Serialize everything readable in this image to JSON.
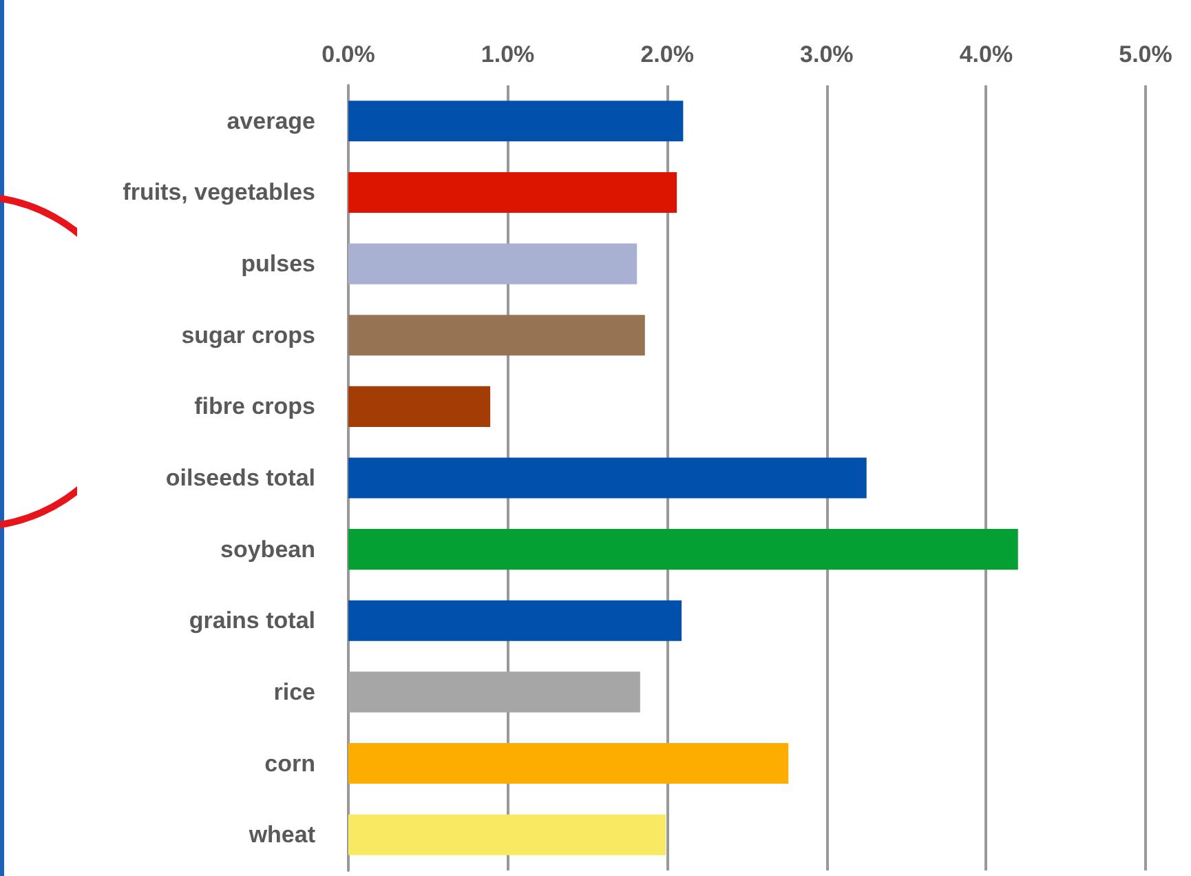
{
  "chart_data": {
    "type": "bar",
    "orientation": "horizontal",
    "categories": [
      "average",
      "fruits, vegetables",
      "pulses",
      "sugar crops",
      "fibre crops",
      "oilseeds total",
      "soybean",
      "grains total",
      "rice",
      "corn",
      "wheat"
    ],
    "values": [
      2.1,
      2.06,
      1.81,
      1.86,
      0.89,
      3.25,
      4.2,
      2.09,
      1.83,
      2.76,
      1.99
    ],
    "colors": [
      "#0050ac",
      "#dc1500",
      "#a9b1d3",
      "#967453",
      "#a43c06",
      "#0050ac",
      "#05a034",
      "#0050ac",
      "#a6a6a6",
      "#fdac00",
      "#f9e862"
    ],
    "xlim": [
      0,
      5
    ],
    "xticks": [
      {
        "value": 0,
        "label": "0.0%"
      },
      {
        "value": 1,
        "label": "1.0%"
      },
      {
        "value": 2,
        "label": "2.0%"
      },
      {
        "value": 3,
        "label": "3.0%"
      },
      {
        "value": 4,
        "label": "4.0%"
      },
      {
        "value": 5,
        "label": "5.0%"
      }
    ],
    "grid": "x"
  }
}
